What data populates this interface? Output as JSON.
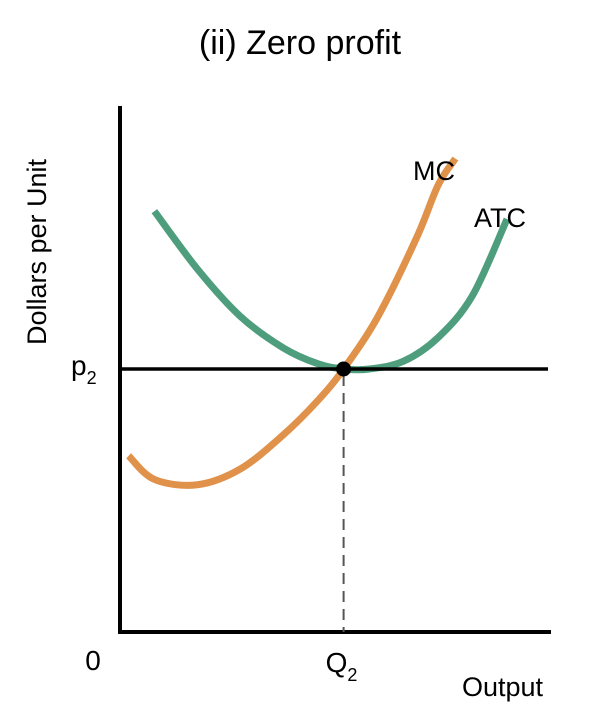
{
  "chart_data": {
    "type": "line",
    "title": "(ii) Zero profit",
    "xlabel": "Output",
    "ylabel": "Dollars per Unit",
    "origin_label": "0",
    "x_tick": {
      "base": "Q",
      "sub": "2"
    },
    "y_tick": {
      "base": "p",
      "sub": "2"
    },
    "grid": false,
    "series": [
      {
        "name": "MC",
        "color": "#E0914A",
        "points": [
          [
            0.02,
            0.67
          ],
          [
            0.08,
            0.58
          ],
          [
            0.18,
            0.56
          ],
          [
            0.28,
            0.62
          ],
          [
            0.38,
            0.75
          ],
          [
            0.46,
            0.88
          ],
          [
            0.52,
            1.0
          ],
          [
            0.6,
            1.2
          ],
          [
            0.69,
            1.5
          ],
          [
            0.74,
            1.7
          ],
          [
            0.78,
            1.8
          ]
        ]
      },
      {
        "name": "ATC",
        "color": "#4E9E7E",
        "points": [
          [
            0.08,
            1.6
          ],
          [
            0.18,
            1.38
          ],
          [
            0.28,
            1.2
          ],
          [
            0.38,
            1.08
          ],
          [
            0.46,
            1.02
          ],
          [
            0.52,
            1.0
          ],
          [
            0.58,
            1.0
          ],
          [
            0.66,
            1.03
          ],
          [
            0.74,
            1.12
          ],
          [
            0.82,
            1.28
          ],
          [
            0.9,
            1.57
          ]
        ]
      }
    ],
    "price_line": {
      "y": 1.0,
      "color": "#000000"
    },
    "equilibrium": {
      "x": 0.52,
      "y": 1.0
    },
    "xlim": [
      0,
      1
    ],
    "ylim": [
      0,
      2
    ]
  }
}
